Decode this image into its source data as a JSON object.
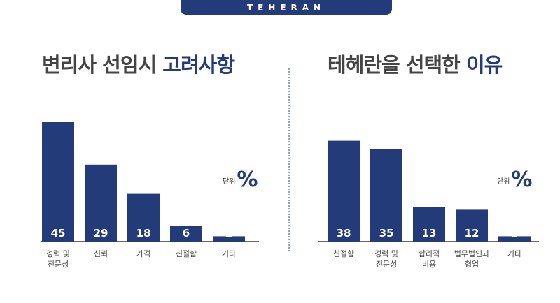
{
  "banner": {
    "text": "TEHERAN"
  },
  "chart_data": [
    {
      "type": "bar",
      "title_main": "변리사 선임시 ",
      "title_accent": "고려사항",
      "unit_label": "단위",
      "unit_symbol": "%",
      "categories": [
        "경력 및\n전문성",
        "신뢰",
        "가격",
        "친절함",
        "기타"
      ],
      "values": [
        45,
        29,
        18,
        6,
        2
      ],
      "colors": {
        "bar": "#243b7a",
        "accent": "#243b7a"
      }
    },
    {
      "type": "bar",
      "title_main": "테헤란을 선택한 ",
      "title_accent": "이유",
      "unit_label": "단위",
      "unit_symbol": "%",
      "categories": [
        "친절함",
        "경력 및\n전문성",
        "합리적\n비용",
        "법무법인과\n협업",
        "기타"
      ],
      "values": [
        38,
        35,
        13,
        12,
        2
      ],
      "colors": {
        "bar": "#243b7a",
        "accent": "#243b7a"
      }
    }
  ]
}
